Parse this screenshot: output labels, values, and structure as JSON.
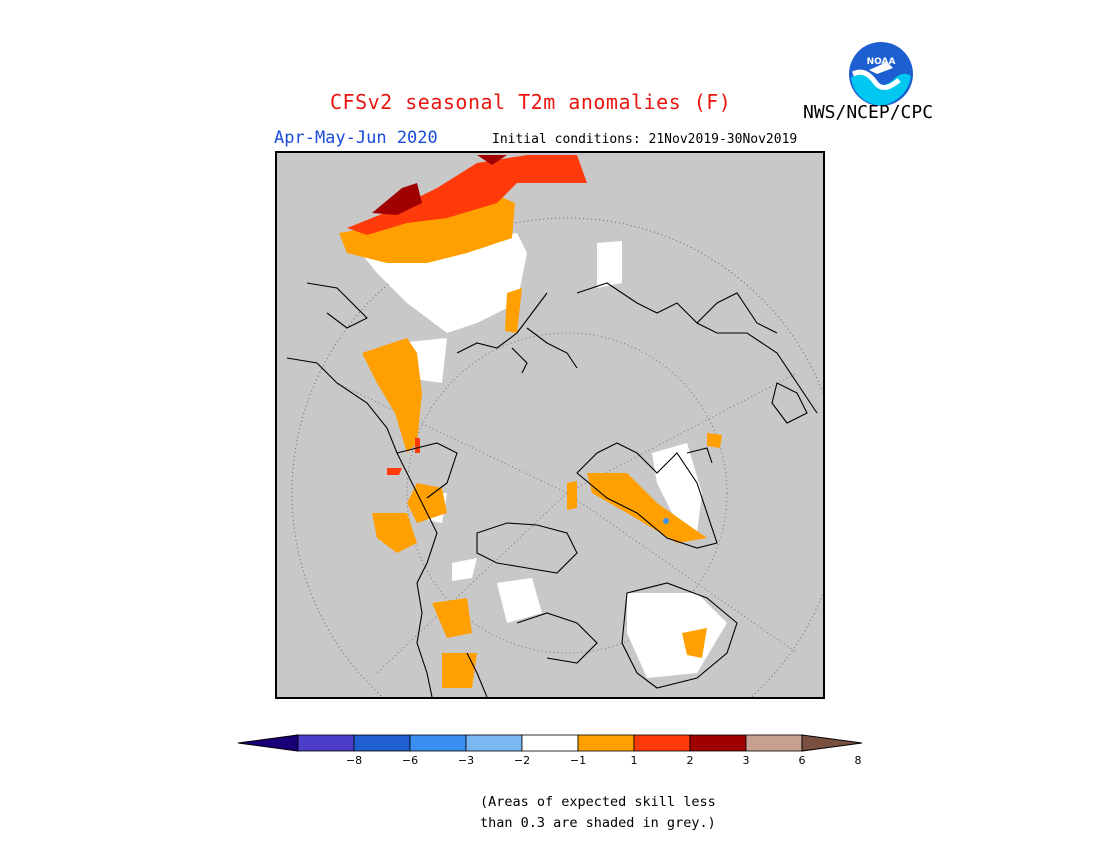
{
  "header": {
    "title": "CFSv2 seasonal T2m anomalies (F)",
    "organization": "NWS/NCEP/CPC",
    "season": "Apr-May-Jun 2020",
    "initial_conditions": "Initial conditions: 21Nov2019-30Nov2019",
    "logo_text": "NOAA"
  },
  "colorbar": {
    "colors": [
      "#1a0078",
      "#4c3dc8",
      "#1f5fd0",
      "#3a8ff0",
      "#7ab8f2",
      "#ffffff",
      "#ffa000",
      "#ff3a0a",
      "#a00000",
      "#c8a090",
      "#7a5040"
    ],
    "tick_labels": [
      "−8",
      "−6",
      "−3",
      "−2",
      "−1",
      "1",
      "2",
      "3",
      "6",
      "8"
    ]
  },
  "note": {
    "line1": "(Areas of expected skill less",
    "line2": "than 0.3 are shaded in grey.)"
  },
  "palette": {
    "grey": "#c8c8c8",
    "white": "#ffffff",
    "orange": "#ffa000",
    "red": "#ff3a0a",
    "darkred": "#a00000",
    "blue": "#3a8ff0"
  }
}
